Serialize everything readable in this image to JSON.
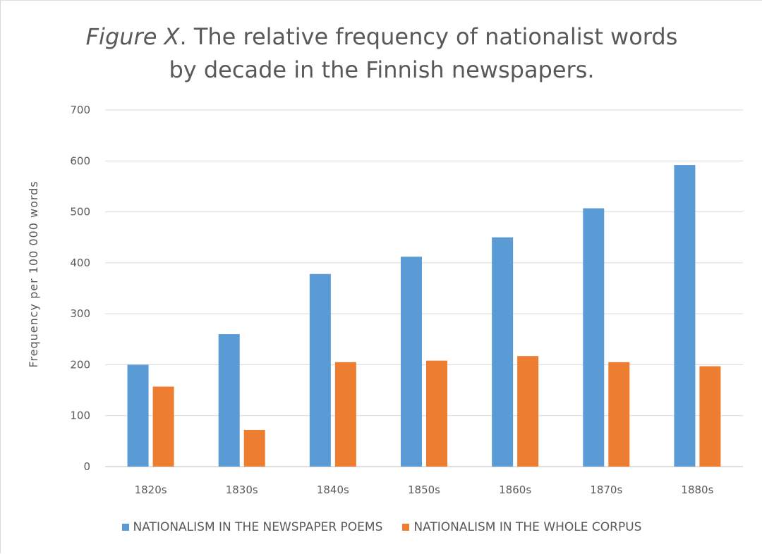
{
  "chart_data": {
    "type": "bar",
    "title_italic": "Figure X",
    "title_rest": ". The relative frequency of nationalist words",
    "title_line2": "by decade in the Finnish newspapers.",
    "xlabel": "",
    "ylabel": "Frequency per 100 000 words",
    "ylim": [
      0,
      700
    ],
    "yticks": [
      0,
      100,
      200,
      300,
      400,
      500,
      600,
      700
    ],
    "grid": true,
    "legend_position": "bottom",
    "categories": [
      "1820s",
      "1830s",
      "1840s",
      "1850s",
      "1860s",
      "1870s",
      "1880s"
    ],
    "series": [
      {
        "name": "NATIONALISM IN THE NEWSPAPER POEMS",
        "color": "#5b9bd5",
        "values": [
          200,
          260,
          378,
          412,
          450,
          507,
          592
        ]
      },
      {
        "name": "NATIONALISM IN THE WHOLE CORPUS",
        "color": "#ed7d31",
        "values": [
          157,
          72,
          205,
          208,
          217,
          205,
          197
        ]
      }
    ]
  }
}
